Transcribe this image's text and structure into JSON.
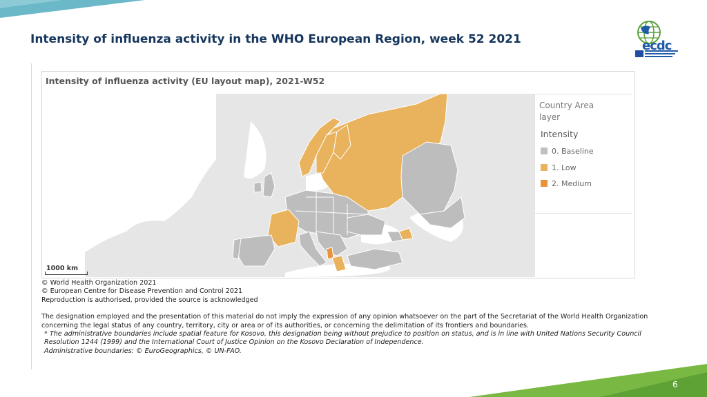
{
  "slide": {
    "title": "Intensity of influenza activity in the WHO European Region, week 52 2021",
    "page_number": "6"
  },
  "logo": {
    "wordmark": "ecdc",
    "lettering": "EUROPEAN CENTRE FOR DISEASE PREVENTION AND CONTROL"
  },
  "map": {
    "title": "Intensity of influenza activity (EU layout map), 2021-W52",
    "scale_label": "1000 km",
    "legend": {
      "layer_label": "Country Area layer",
      "heading": "Intensity",
      "items": [
        {
          "label": "0. Baseline",
          "color": "#c0c0c0"
        },
        {
          "label": "1. Low",
          "color": "#e9b25c"
        },
        {
          "label": "2. Medium",
          "color": "#e8923a"
        }
      ]
    },
    "colors": {
      "background": "#e6e6e6",
      "no_data": "#e6e6e6",
      "baseline": "#bdbdbd",
      "low": "#e9b25c",
      "medium": "#e8923a",
      "border": "#ffffff"
    },
    "regions_by_intensity": {
      "baseline": [
        "Portugal",
        "Spain",
        "Italy",
        "Poland",
        "Germany",
        "Romania",
        "Turkey",
        "Kazakhstan",
        "Ukraine",
        "Ireland"
      ],
      "low": [
        "France",
        "Russia",
        "Norway",
        "Sweden",
        "Finland",
        "Azerbaijan",
        "Greece"
      ],
      "medium": [
        "Albania"
      ]
    }
  },
  "notes": {
    "copyright_who": "© World Health Organization 2021",
    "copyright_ecdc": "© European Centre for Disease Prevention and Control 2021",
    "reproduction": "Reproduction is authorised, provided the source is acknowledged",
    "disclaimer_line1": "The designation employed and the presentation of this material do not imply the expression of any opinion whatsoever on the part of the Secretariat of the World Health Organization",
    "disclaimer_line2": "concerning the legal status of any country, territory, city or area or of its authorities, or concerning the delimitation of its frontiers and boundaries.",
    "kosovo_line1": "* The administrative boundaries include spatial feature for Kosovo, this designation being without prejudice to position on status, and is in line with United Nations Security Council",
    "kosovo_line2": "Resolution 1244 (1999) and the International Court of Justice Opinion on the Kosovo Declaration of Independence.",
    "admin_boundaries": "Administrative boundaries: © EuroGeographics, © UN-FAO."
  }
}
